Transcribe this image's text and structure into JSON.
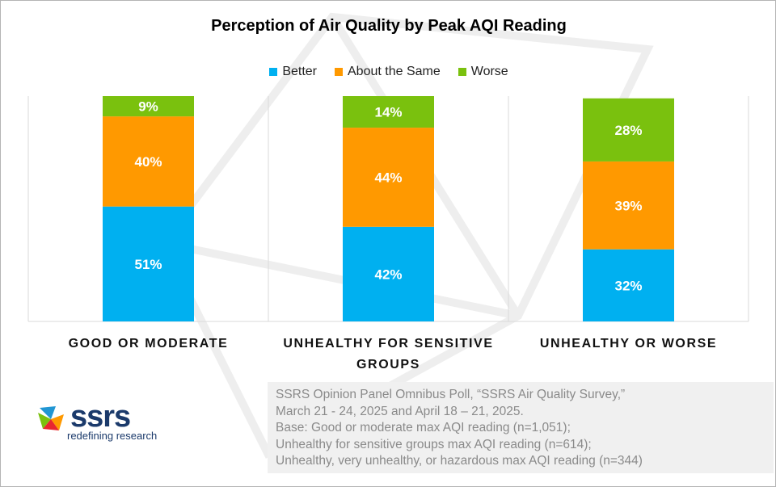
{
  "chart_data": {
    "type": "bar",
    "stacked": true,
    "title": "Perception of Air Quality by Peak AQI Reading",
    "categories": [
      "GOOD OR MODERATE",
      "UNHEALTHY FOR SENSITIVE",
      "UNHEALTHY OR WORSE"
    ],
    "category_label_extra": [
      "",
      "GROUPS",
      ""
    ],
    "series": [
      {
        "name": "Better",
        "color": "#00b0f0",
        "values": [
          51,
          42,
          32
        ],
        "labels": [
          "51%",
          "42%",
          "32%"
        ]
      },
      {
        "name": "About the Same",
        "color": "#ff9900",
        "values": [
          40,
          44,
          39
        ],
        "labels": [
          "40%",
          "44%",
          "39%"
        ]
      },
      {
        "name": "Worse",
        "color": "#7ac10e",
        "values": [
          9,
          14,
          28
        ],
        "labels": [
          "9%",
          "14%",
          "28%"
        ]
      }
    ],
    "ylim": [
      0,
      100
    ],
    "xlabel": "",
    "ylabel": "",
    "legend_position": "top-center"
  },
  "source": {
    "lines": [
      "SSRS Opinion Panel Omnibus Poll, “SSRS Air Quality Survey,”",
      "March 21 - 24, 2025 and April 18 – 21, 2025.",
      "Base: Good or moderate max AQI reading (n=1,051);",
      "Unhealthy for sensitive groups max AQI reading (n=614);",
      "Unhealthy, very unhealthy, or hazardous max AQI reading (n=344)"
    ]
  },
  "logo": {
    "wordmark": "ssrs",
    "tagline": "redefining research"
  }
}
